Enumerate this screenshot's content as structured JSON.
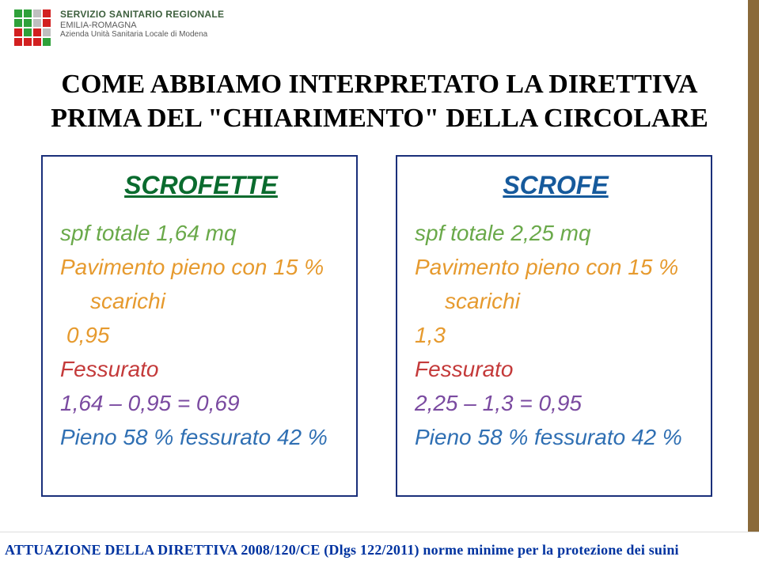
{
  "logo": {
    "line1": "SERVIZIO SANITARIO REGIONALE",
    "line2": "EMILIA-ROMAGNA",
    "line3": "Azienda Unità Sanitaria Locale di Modena",
    "squares": [
      "#2fa13a",
      "#2fa13a",
      "#bfbfbf",
      "#d22020",
      "#2fa13a",
      "#2fa13a",
      "#bfbfbf",
      "#d22020",
      "#d22020",
      "#2fa13a",
      "#d22020",
      "#bfbfbf",
      "#d22020",
      "#d22020",
      "#d22020",
      "#2fa13a"
    ]
  },
  "title": {
    "line1": "COME ABBIAMO INTERPRETATO LA DIRETTIVA",
    "line2": "PRIMA DEL \"CHIARIMENTO\" DELLA CIRCOLARE"
  },
  "colors": {
    "border": "#1a2f7a",
    "head_left": "#0a6b2e",
    "head_right": "#165a9c",
    "line1": "#6aa94a",
    "line2": "#e69a2e",
    "line3": "#c43a3a",
    "line4": "#7a4aa0",
    "line5": "#2f6fb3",
    "footer_text": "#0033a0"
  },
  "left": {
    "head": "SCROFETTE",
    "r1": "spf totale 1,64 mq",
    "r2a": "Pavimento pieno con 15 %",
    "r2b": "scarichi",
    "r3": "0,95",
    "r4": "Fessurato",
    "r5": "1,64 – 0,95 = 0,69",
    "r6": "Pieno 58 % fessurato 42 %"
  },
  "right": {
    "head": "SCROFE",
    "r1": "spf totale 2,25 mq",
    "r2a": "Pavimento pieno con 15 %",
    "r2b": "scarichi",
    "r3": "1,3",
    "r4": "Fessurato",
    "r5": "2,25 – 1,3 =  0,95",
    "r6": "Pieno 58 % fessurato 42 %"
  },
  "footer": "ATTUAZIONE DELLA DIRETTIVA 2008/120/CE (Dlgs 122/2011) norme minime per la protezione dei suini"
}
